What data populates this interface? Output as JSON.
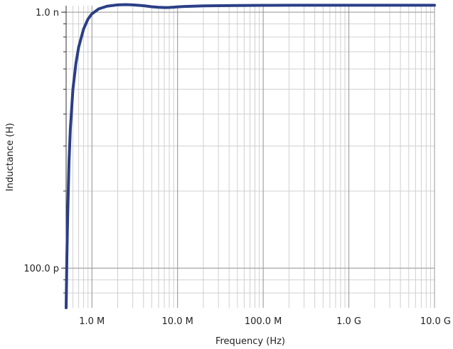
{
  "chart_data": {
    "type": "line",
    "title": "",
    "xlabel": "Frequency (Hz)",
    "ylabel": "Inductance (H)",
    "x_scale": "log",
    "y_scale": "log",
    "xlim": [
      500000,
      10000000000
    ],
    "ylim": [
      7e-11,
      1.06e-09
    ],
    "grid": true,
    "x_ticks": [
      {
        "value": 1000000,
        "label": "1.0 M"
      },
      {
        "value": 10000000,
        "label": "10.0 M"
      },
      {
        "value": 100000000,
        "label": "100.0 M"
      },
      {
        "value": 1000000000,
        "label": "1.0 G"
      },
      {
        "value": 10000000000,
        "label": "10.0 G"
      }
    ],
    "y_ticks": [
      {
        "value": 1e-09,
        "label": "1.0 n"
      },
      {
        "value": 1e-10,
        "label": "100.0 p"
      }
    ],
    "series": [
      {
        "color": "#2b3f86",
        "x": [
          500000,
          510000,
          520000,
          540000,
          560000,
          600000,
          650000,
          700000,
          800000,
          900000,
          1000000,
          1200000,
          1500000,
          2000000,
          2500000,
          3000000,
          4000000,
          5000000,
          6000000,
          7000000,
          7500000,
          8000000,
          9000000,
          10000000,
          12000000,
          15000000,
          20000000,
          30000000,
          50000000,
          100000000,
          200000000,
          500000000,
          1000000000,
          10000000000
        ],
        "y": [
          7e-11,
          1.1e-10,
          1.55e-10,
          2.6e-10,
          3.5e-10,
          5e-10,
          6.3e-10,
          7.3e-10,
          8.6e-10,
          9.4e-10,
          9.85e-10,
          1.03e-09,
          1.055e-09,
          1.068e-09,
          1.07e-09,
          1.068e-09,
          1.06e-09,
          1.05e-09,
          1.045e-09,
          1.042e-09,
          1.042e-09,
          1.043e-09,
          1.046e-09,
          1.049e-09,
          1.052e-09,
          1.055e-09,
          1.058e-09,
          1.06e-09,
          1.062e-09,
          1.063e-09,
          1.064e-09,
          1.064e-09,
          1.064e-09,
          1.064e-09
        ]
      }
    ]
  }
}
